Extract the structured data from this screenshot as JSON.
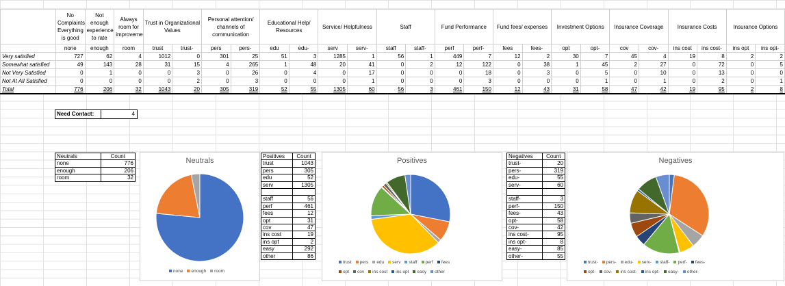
{
  "header_groups": [
    {
      "label": "No Complaints/ Everything is good",
      "span": 1
    },
    {
      "label": "Not enough experience to rate",
      "span": 1
    },
    {
      "label": "Always room for improvement",
      "span": 1
    },
    {
      "label": "Trust in Organizational Values",
      "span": 2
    },
    {
      "label": "Personal attention/ channels of communication",
      "span": 2
    },
    {
      "label": "Educational Help/ Resources",
      "span": 2
    },
    {
      "label": "Service/ Helpfulness",
      "span": 2
    },
    {
      "label": "Staff",
      "span": 2
    },
    {
      "label": "Fund Performance",
      "span": 2
    },
    {
      "label": "Fund fees/ expenses",
      "span": 2
    },
    {
      "label": "Investment Options",
      "span": 2
    },
    {
      "label": "Insurance Coverage",
      "span": 2
    },
    {
      "label": "Insurance Costs",
      "span": 2
    },
    {
      "label": "Insurance Options",
      "span": 2
    }
  ],
  "sub_headers": [
    "none",
    "enough",
    "room",
    "trust",
    "trust-",
    "pers",
    "pers-",
    "edu",
    "edu-",
    "serv",
    "serv-",
    "staff",
    "staff-",
    "perf",
    "perf-",
    "fees",
    "fees-",
    "opt",
    "opt-",
    "cov",
    "cov-",
    "ins cost",
    "ins cost-",
    "ins opt",
    "ins opt-"
  ],
  "rows": [
    {
      "label": "Very satisfied",
      "values": [
        "727",
        "62",
        "4",
        "1012",
        "0",
        "301",
        "25",
        "51",
        "3",
        "1285",
        "1",
        "56",
        "1",
        "449",
        "7",
        "12",
        "2",
        "30",
        "7",
        "45",
        "4",
        "19",
        "8",
        "2",
        "2"
      ]
    },
    {
      "label": "Somewhat satisfied",
      "values": [
        "49",
        "143",
        "28",
        "31",
        "15",
        "4",
        "265",
        "1",
        "48",
        "20",
        "41",
        "0",
        "2",
        "12",
        "122",
        "0",
        "38",
        "1",
        "45",
        "2",
        "27",
        "0",
        "72",
        "0",
        "5"
      ]
    },
    {
      "label": "Not Very Satisfied",
      "values": [
        "0",
        "1",
        "0",
        "0",
        "3",
        "0",
        "26",
        "0",
        "4",
        "0",
        "17",
        "0",
        "0",
        "0",
        "18",
        "0",
        "3",
        "0",
        "5",
        "0",
        "10",
        "0",
        "13",
        "0",
        "0"
      ]
    },
    {
      "label": "Not At All Satisfied",
      "values": [
        "0",
        "0",
        "0",
        "0",
        "2",
        "0",
        "3",
        "0",
        "0",
        "0",
        "1",
        "0",
        "0",
        "0",
        "3",
        "0",
        "0",
        "0",
        "1",
        "0",
        "1",
        "0",
        "2",
        "0",
        "1"
      ]
    },
    {
      "label": "Total",
      "values": [
        "776",
        "206",
        "32",
        "1043",
        "20",
        "305",
        "319",
        "52",
        "55",
        "1305",
        "60",
        "56",
        "3",
        "461",
        "150",
        "12",
        "43",
        "31",
        "58",
        "47",
        "42",
        "19",
        "95",
        "2",
        "8"
      ]
    }
  ],
  "need_contact": {
    "label": "Need Contact:",
    "value": "4"
  },
  "neutrals_table": {
    "headers": [
      "Neutrals",
      "Count"
    ],
    "rows": [
      [
        "none",
        "776"
      ],
      [
        "enough",
        "206"
      ],
      [
        "room",
        "32"
      ]
    ]
  },
  "positives_table": {
    "headers": [
      "Positives",
      "Count"
    ],
    "rows": [
      [
        "trust",
        "1043"
      ],
      [
        "pers",
        "305"
      ],
      [
        "edu",
        "52"
      ],
      [
        "serv",
        "1305"
      ],
      [
        "",
        ""
      ],
      [
        "staff",
        "56"
      ],
      [
        "perf",
        "461"
      ],
      [
        "fees",
        "12"
      ],
      [
        "opt",
        "31"
      ],
      [
        "cov",
        "47"
      ],
      [
        "ins cost",
        "19"
      ],
      [
        "ins opt",
        "2"
      ],
      [
        "easy",
        "292"
      ],
      [
        "other",
        "86"
      ]
    ]
  },
  "negatives_table": {
    "headers": [
      "Negatives",
      "Count"
    ],
    "rows": [
      [
        "trust-",
        "20"
      ],
      [
        "pers-",
        "319"
      ],
      [
        "edu-",
        "55"
      ],
      [
        "serv-",
        "60"
      ],
      [
        "",
        ""
      ],
      [
        "staff-",
        "3"
      ],
      [
        "perf-",
        "150"
      ],
      [
        "fees-",
        "43"
      ],
      [
        "opt-",
        "58"
      ],
      [
        "cov-",
        "42"
      ],
      [
        "ins cost-",
        "95"
      ],
      [
        "ins opt-",
        "8"
      ],
      [
        "easy-",
        "85"
      ],
      [
        "other-",
        "55"
      ]
    ]
  },
  "chart_data": [
    {
      "type": "pie",
      "title": "Neutrals",
      "categories": [
        "none",
        "enough",
        "room"
      ],
      "values": [
        776,
        206,
        32
      ],
      "colors": [
        "#4472C4",
        "#ED7D31",
        "#A5A5A5"
      ],
      "legend": "bottom"
    },
    {
      "type": "pie",
      "title": "Positives",
      "categories": [
        "trust",
        "pers",
        "edu",
        "serv",
        "staff",
        "perf",
        "fees",
        "opt",
        "cov",
        "ins cost",
        "ins opt",
        "easy",
        "other"
      ],
      "values": [
        1043,
        305,
        52,
        1305,
        56,
        461,
        12,
        31,
        47,
        19,
        2,
        292,
        86
      ],
      "colors": [
        "#4472C4",
        "#ED7D31",
        "#A5A5A5",
        "#FFC000",
        "#5B9BD5",
        "#70AD47",
        "#264478",
        "#9E480E",
        "#636363",
        "#997300",
        "#255E91",
        "#43682B",
        "#698ED0"
      ],
      "legend": "bottom"
    },
    {
      "type": "pie",
      "title": "Negatives",
      "categories": [
        "trust-",
        "pers-",
        "edu-",
        "serv-",
        "staff-",
        "perf-",
        "fees-",
        "opt-",
        "cov-",
        "ins cost-",
        "ins opt-",
        "easy-",
        "other-"
      ],
      "values": [
        20,
        319,
        55,
        60,
        3,
        150,
        43,
        58,
        42,
        95,
        8,
        85,
        55
      ],
      "colors": [
        "#4472C4",
        "#ED7D31",
        "#A5A5A5",
        "#FFC000",
        "#5B9BD5",
        "#70AD47",
        "#264478",
        "#9E480E",
        "#636363",
        "#997300",
        "#255E91",
        "#43682B",
        "#698ED0"
      ],
      "legend": "bottom"
    }
  ]
}
